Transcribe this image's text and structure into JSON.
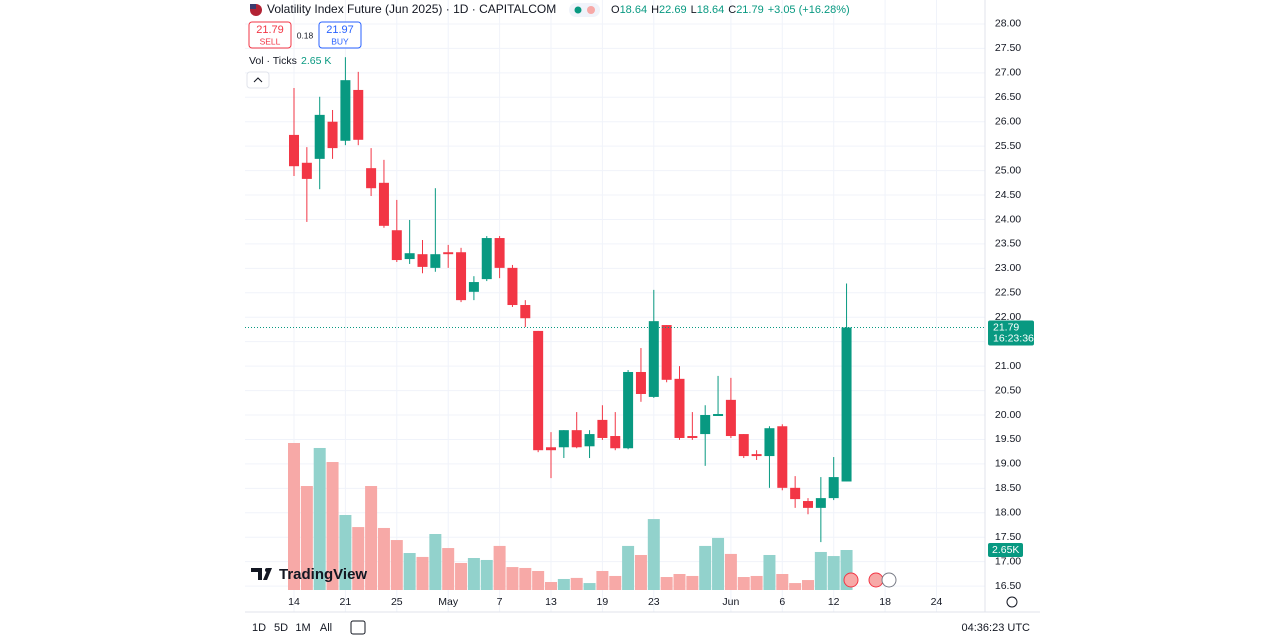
{
  "header": {
    "title": "Volatility Index Future (Jun 2025) · 1D · CAPITALCOM",
    "stats": [
      [
        "O",
        "18.64"
      ],
      [
        "H",
        "22.69"
      ],
      [
        "L",
        "18.64"
      ],
      [
        "C",
        "21.79"
      ]
    ],
    "change": "+3.05 (+16.28%)"
  },
  "trade": {
    "sell_price": "21.79",
    "sell_label": "SELL",
    "spread": "0.18",
    "buy_price": "21.97",
    "buy_label": "BUY"
  },
  "volume_legend": {
    "label": "Vol · Ticks",
    "value": "2.65 K"
  },
  "logo": {
    "text": "TradingView"
  },
  "toolbar": {
    "ranges": [
      "1D",
      "5D",
      "1M",
      "All"
    ],
    "clock": "04:36:23 UTC"
  },
  "chart_data": {
    "type": "candlestick",
    "categories": [
      "14",
      null,
      null,
      null,
      "21",
      null,
      null,
      null,
      "25",
      null,
      null,
      null,
      "May",
      null,
      null,
      null,
      "7",
      null,
      null,
      null,
      "13",
      null,
      null,
      null,
      "19",
      null,
      null,
      null,
      "23",
      null,
      null,
      null,
      null,
      null,
      "Jun",
      null,
      null,
      null,
      "6",
      null,
      null,
      null,
      "12",
      null,
      null,
      null,
      "18",
      null,
      null,
      null,
      "24"
    ],
    "open": [
      25.73,
      25.16,
      25.24,
      26.0,
      25.61,
      26.65,
      25.05,
      24.75,
      23.78,
      23.19,
      23.29,
      23.01,
      23.33,
      23.33,
      22.52,
      22.78,
      23.62,
      23.01,
      22.25,
      21.72,
      19.34,
      19.34,
      19.69,
      19.36,
      19.9,
      19.57,
      19.32,
      20.88,
      20.37,
      21.84,
      20.74,
      19.57,
      19.61,
      19.98,
      20.31,
      19.61,
      19.2,
      19.16,
      19.77,
      18.51,
      18.24,
      18.1,
      18.3,
      18.64,
      null,
      null,
      null,
      null,
      null,
      null,
      null
    ],
    "high": [
      26.69,
      25.48,
      26.51,
      26.24,
      27.32,
      27.02,
      25.46,
      25.22,
      24.4,
      23.99,
      23.58,
      24.64,
      23.48,
      23.42,
      22.84,
      23.66,
      23.66,
      23.07,
      22.35,
      21.72,
      19.65,
      19.69,
      20.06,
      19.69,
      20.2,
      20.06,
      20.92,
      21.37,
      22.56,
      21.84,
      21.0,
      20.06,
      20.2,
      20.8,
      20.76,
      19.61,
      19.28,
      19.77,
      19.81,
      18.75,
      18.3,
      18.73,
      19.14,
      22.69,
      null,
      null,
      null,
      null,
      null,
      null,
      null
    ],
    "low": [
      24.89,
      23.95,
      24.62,
      25.24,
      25.52,
      25.52,
      24.48,
      23.83,
      23.13,
      23.09,
      22.9,
      22.93,
      23.01,
      22.31,
      22.35,
      22.74,
      22.8,
      22.21,
      21.8,
      19.24,
      18.71,
      19.12,
      19.32,
      19.12,
      19.49,
      19.28,
      19.3,
      20.27,
      20.35,
      20.67,
      19.49,
      19.49,
      18.96,
      19.98,
      19.53,
      19.12,
      19.08,
      18.51,
      18.46,
      18.1,
      17.97,
      17.4,
      18.26,
      18.64,
      null,
      null,
      null,
      null,
      null,
      null,
      null
    ],
    "close": [
      25.09,
      24.83,
      26.14,
      25.46,
      26.85,
      25.63,
      24.64,
      23.87,
      23.17,
      23.31,
      23.03,
      23.29,
      23.29,
      22.35,
      22.72,
      23.62,
      23.01,
      22.25,
      21.98,
      19.28,
      19.28,
      19.69,
      19.34,
      19.61,
      19.53,
      19.32,
      20.88,
      20.43,
      21.92,
      20.72,
      19.53,
      19.53,
      20.0,
      20.02,
      19.57,
      19.16,
      19.16,
      19.73,
      18.51,
      18.28,
      18.1,
      18.3,
      18.73,
      21.79,
      null,
      null,
      null,
      null,
      null,
      null,
      null
    ],
    "volume": [
      9740,
      6890,
      9410,
      8480,
      4970,
      4170,
      6890,
      4110,
      3310,
      2450,
      2190,
      3710,
      2780,
      1790,
      2120,
      1990,
      2920,
      1520,
      1460,
      1260,
      530,
      730,
      800,
      460,
      1260,
      930,
      2920,
      2320,
      4700,
      860,
      1060,
      930,
      2920,
      3450,
      2390,
      860,
      930,
      2320,
      1060,
      460,
      660,
      2520,
      2250,
      2650,
      null,
      null,
      null,
      null,
      null,
      null,
      null
    ],
    "last_volume_label": "2.65K",
    "last_price": 21.79,
    "countdown": "16:23:36",
    "up_color": "#089981",
    "down_color": "#f23645",
    "volume_up_color": "#92d2cc",
    "volume_down_color": "#f7a9a7",
    "ylim": [
      15.97,
      28.49
    ],
    "yticks": [
      {
        "value": 16.5,
        "label": "16.50"
      },
      {
        "value": 17,
        "label": "17.00"
      },
      {
        "value": 17.5,
        "label": "17.50"
      },
      {
        "value": 18,
        "label": "18.00"
      },
      {
        "value": 18.5,
        "label": "18.50"
      },
      {
        "value": 19,
        "label": "19.00"
      },
      {
        "value": 19.5,
        "label": "19.50"
      },
      {
        "value": 20,
        "label": "20.00"
      },
      {
        "value": 20.5,
        "label": "20.50"
      },
      {
        "value": 21,
        "label": "21.00"
      },
      {
        "value": 21.5,
        "label": "21.50"
      },
      {
        "value": 22,
        "label": "22.00"
      },
      {
        "value": 22.5,
        "label": "22.50"
      },
      {
        "value": 23,
        "label": "23.00"
      },
      {
        "value": 23.5,
        "label": "23.50"
      },
      {
        "value": 24,
        "label": "24.00"
      },
      {
        "value": 24.5,
        "label": "24.50"
      },
      {
        "value": 25,
        "label": "25.00"
      },
      {
        "value": 25.5,
        "label": "25.50"
      },
      {
        "value": 26,
        "label": "26.00"
      },
      {
        "value": 26.5,
        "label": "26.50"
      },
      {
        "value": 27,
        "label": "27.00"
      },
      {
        "value": 27.5,
        "label": "27.50"
      },
      {
        "value": 28,
        "label": "28.00"
      }
    ],
    "grid": true
  }
}
